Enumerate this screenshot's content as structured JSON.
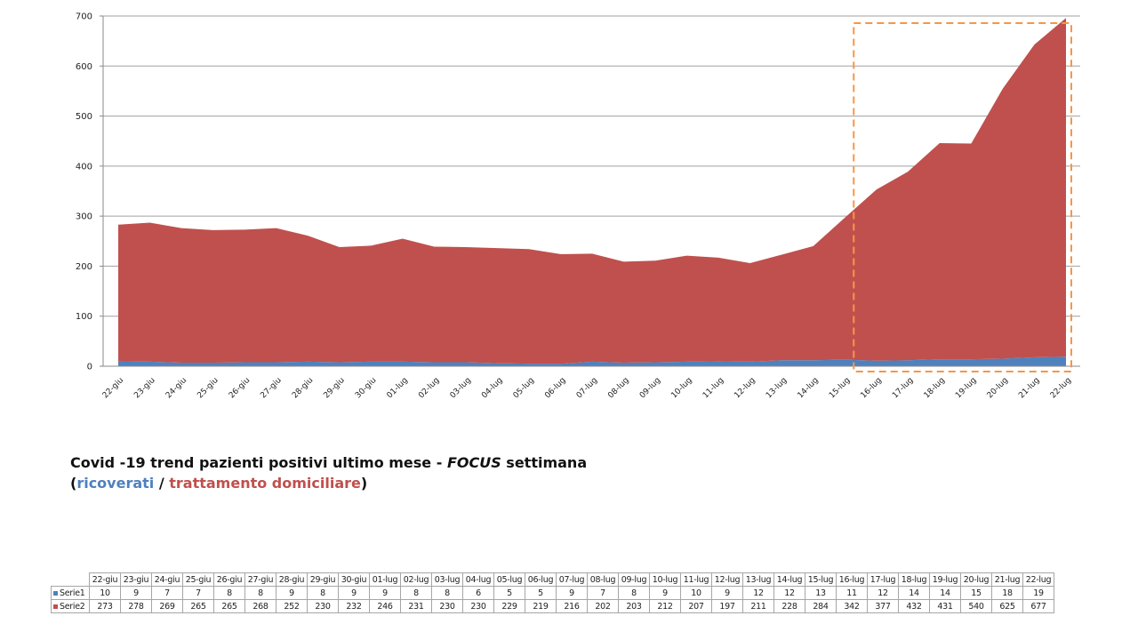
{
  "chart_data": {
    "type": "area",
    "stacked": true,
    "title": "Covid -19 trend pazienti positivi ultimo mese - FOCUS settimana (ricoverati / trattamento domiciliare)",
    "xlabel": "",
    "ylabel": "",
    "ylim": [
      0,
      700
    ],
    "yticks": [
      0,
      100,
      200,
      300,
      400,
      500,
      600,
      700
    ],
    "grid": true,
    "legend_position": "data-table",
    "categories": [
      "22-giu",
      "23-giu",
      "24-giu",
      "25-giu",
      "26-giu",
      "27-giu",
      "28-giu",
      "29-giu",
      "30-giu",
      "01-lug",
      "02-lug",
      "03-lug",
      "04-lug",
      "05-lug",
      "06-lug",
      "07-lug",
      "08-lug",
      "09-lug",
      "10-lug",
      "11-lug",
      "12-lug",
      "13-lug",
      "14-lug",
      "15-lug",
      "16-lug",
      "17-lug",
      "18-lug",
      "19-lug",
      "20-lug",
      "21-lug",
      "22-lug"
    ],
    "series": [
      {
        "name": "Serie1",
        "label": "ricoverati",
        "color": "#4f81bd",
        "values": [
          10,
          9,
          7,
          7,
          8,
          8,
          9,
          8,
          9,
          9,
          8,
          8,
          6,
          5,
          5,
          9,
          7,
          8,
          9,
          10,
          9,
          12,
          12,
          13,
          11,
          12,
          14,
          14,
          15,
          18,
          19
        ]
      },
      {
        "name": "Serie2",
        "label": "trattamento domiciliare",
        "color": "#c0504d",
        "values": [
          273,
          278,
          269,
          265,
          265,
          268,
          252,
          230,
          232,
          246,
          231,
          230,
          230,
          229,
          219,
          216,
          202,
          203,
          212,
          207,
          197,
          211,
          228,
          284,
          342,
          377,
          432,
          431,
          540,
          625,
          677
        ]
      }
    ],
    "annotations": [
      {
        "type": "dashed-box",
        "from": "15-lug",
        "to": "22-lug",
        "color": "#f79646",
        "meaning": "FOCUS settimana"
      }
    ]
  },
  "caption": {
    "line1_a": "Covid -19 trend pazienti positivi ultimo mese - ",
    "line1_focus": "FOCUS",
    "line1_b": " settimana",
    "open_paren": "(",
    "ricoverati": "ricoverati",
    "slash": " / ",
    "domiciliare": "trattamento domiciliare",
    "close_paren": ")"
  },
  "colors": {
    "serie1": "#4f81bd",
    "serie2": "#c0504d",
    "focus_box": "#f79646",
    "grid": "#a0a0a0"
  }
}
